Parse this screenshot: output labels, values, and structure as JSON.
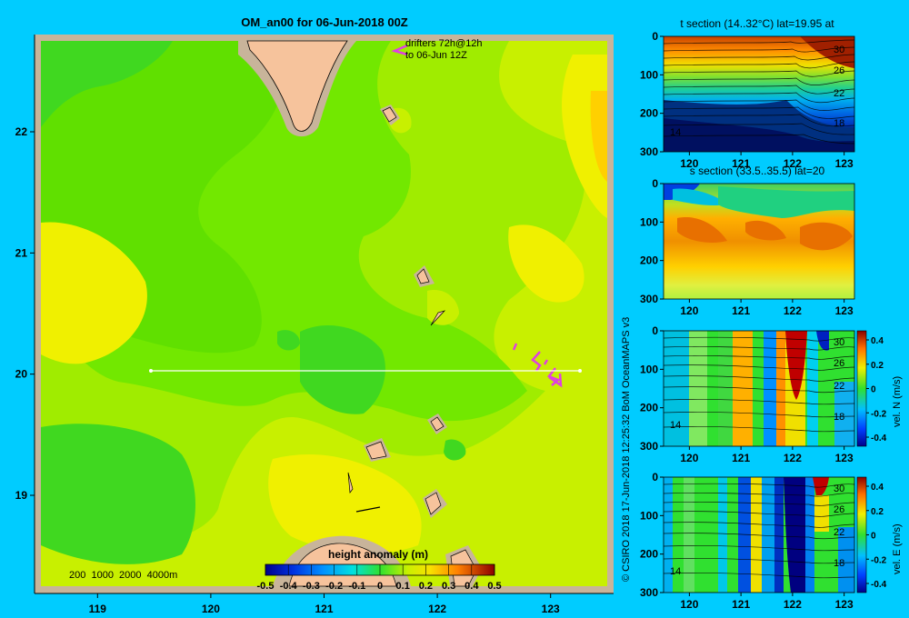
{
  "colors": {
    "background": "#00ccff",
    "frame": "#c8b49a",
    "land": "#f6c39c",
    "drifter": "#e040e0",
    "transect": "#ffffff"
  },
  "main_map": {
    "title": "OM_an00 for 06-Jun-2018 00Z",
    "drifter_note_line1": "drifters 72h@12h",
    "drifter_note_line2": "to 06-Jun 12Z",
    "depth_legend": "200  1000  2000  4000m",
    "colorbar_title": "height anomaly  (m)",
    "colorbar_ticks": [
      "-0.5",
      "-0.4",
      "-0.3",
      "-0.2",
      "-0.1",
      "0",
      "0.1",
      "0.2",
      "0.3",
      "0.4",
      "0.5"
    ]
  },
  "copyright": "© CSIRO 2018   17-Jun-2018 12:25:32  BoM OceanMAPS v3",
  "panels": {
    "t": {
      "title": "t section (14..32°C) lat=19.95 at"
    },
    "s": {
      "title": "s section (33.5..35.5) lat=20"
    },
    "n": {
      "colorbar_label": "vel. N  (m/s)"
    },
    "e": {
      "colorbar_label": "vel. E  (m/s)"
    }
  },
  "chart_data": [
    {
      "type": "heatmap",
      "title": "OM_an00 for 06-Jun-2018 00Z",
      "variable": "sea surface height anomaly",
      "units": "m",
      "xlabel": "",
      "ylabel": "",
      "xlim": [
        118.5,
        123.5
      ],
      "ylim": [
        18.25,
        22.75
      ],
      "x_ticks": [
        119,
        120,
        121,
        122,
        123
      ],
      "y_ticks": [
        19,
        20,
        21,
        22
      ],
      "color_range": [
        -0.5,
        0.5
      ],
      "transect": {
        "lat": 20,
        "lon": [
          119.5,
          123.2
        ]
      },
      "field_summary": [
        {
          "region": "north-west",
          "value": 0.05
        },
        {
          "region": "central",
          "value": 0.12
        },
        {
          "region": "west",
          "value": 0.22
        },
        {
          "region": "north-east",
          "value": 0.24
        },
        {
          "region": "east edge",
          "value": 0.3
        },
        {
          "region": "south",
          "value": 0.2
        },
        {
          "region": "south-west",
          "value": 0.05
        }
      ]
    },
    {
      "type": "heatmap",
      "title": "t section (14..32°C) lat=19.95 at",
      "xlim": [
        119.5,
        123.2
      ],
      "ylim": [
        300,
        0
      ],
      "x_ticks": [
        120,
        121,
        122,
        123
      ],
      "y_ticks": [
        0,
        100,
        200,
        300
      ],
      "contour_labels": [
        "30",
        "26",
        "22",
        "18",
        "14"
      ],
      "color_range": [
        14,
        32
      ]
    },
    {
      "type": "heatmap",
      "title": "s section (33.5..35.5) lat=20",
      "xlim": [
        119.5,
        123.2
      ],
      "ylim": [
        300,
        0
      ],
      "x_ticks": [
        120,
        121,
        122,
        123
      ],
      "y_ticks": [
        0,
        100,
        200,
        300
      ],
      "color_range": [
        33.5,
        35.5
      ]
    },
    {
      "type": "heatmap",
      "title": "",
      "colorbar_label": "vel. N  (m/s)",
      "xlim": [
        119.5,
        123.2
      ],
      "ylim": [
        300,
        0
      ],
      "x_ticks": [
        120,
        121,
        122,
        123
      ],
      "y_ticks": [
        0,
        100,
        200,
        300
      ],
      "contour_labels": [
        "30",
        "26",
        "22",
        "18",
        "14"
      ],
      "color_range": [
        -0.4,
        0.4
      ],
      "colorbar_ticks": [
        "0.4",
        "0.2",
        "0",
        "-0.2",
        "-0.4"
      ]
    },
    {
      "type": "heatmap",
      "title": "",
      "colorbar_label": "vel. E  (m/s)",
      "xlim": [
        119.5,
        123.2
      ],
      "ylim": [
        300,
        0
      ],
      "x_ticks": [
        120,
        121,
        122,
        123
      ],
      "y_ticks": [
        0,
        100,
        200,
        300
      ],
      "contour_labels": [
        "30",
        "26",
        "22",
        "18",
        "14"
      ],
      "color_range": [
        -0.4,
        0.4
      ],
      "colorbar_ticks": [
        "0.4",
        "0.2",
        "0",
        "-0.2",
        "-0.4"
      ]
    }
  ]
}
